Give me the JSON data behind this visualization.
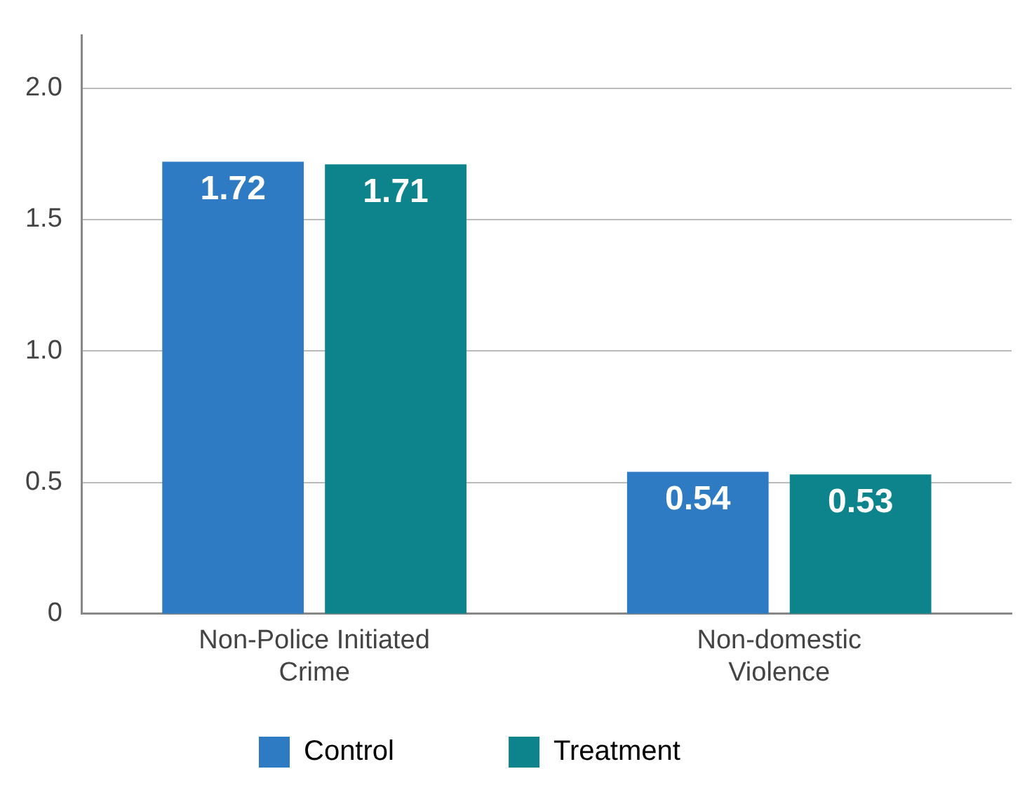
{
  "chart_data": {
    "type": "bar",
    "categories": [
      "Non-Police Initiated Crime",
      "Non-domestic Violence"
    ],
    "series": [
      {
        "name": "Control",
        "color": "#2e7bc4",
        "values": [
          1.72,
          0.54
        ]
      },
      {
        "name": "Treatment",
        "color": "#0d838c",
        "values": [
          1.71,
          0.53
        ]
      }
    ],
    "ylim": [
      0,
      2.2
    ],
    "yticks": [
      0,
      0.5,
      {
        "value": 1,
        "label": "1.0"
      },
      1.5,
      {
        "value": 2,
        "label": "2.0"
      }
    ],
    "grid": "y",
    "legend": "bottom",
    "data_labels": true
  }
}
